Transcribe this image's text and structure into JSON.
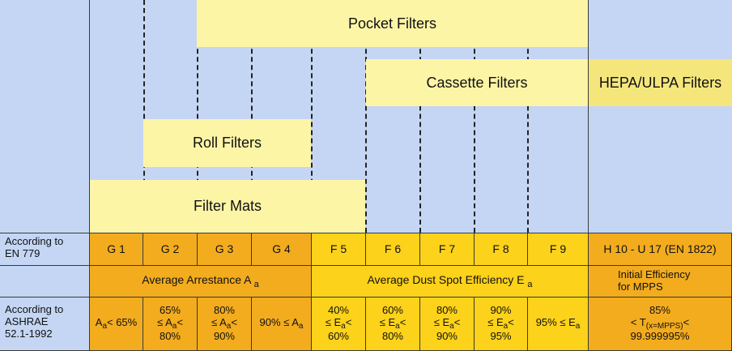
{
  "bands": {
    "pocket_filters": "Pocket Filters",
    "cassette_filters": "Cassette Filters",
    "hepa_ulpa_filters": "HEPA/ULPA Filters",
    "roll_filters": "Roll Filters",
    "filter_mats": "Filter Mats"
  },
  "standard_en779": {
    "label_line1": "According to",
    "label_line2": "EN 779"
  },
  "classes": [
    "G 1",
    "G 2",
    "G 3",
    "G 4",
    "F 5",
    "F 6",
    "F 7",
    "F 8",
    "F 9",
    "H 10 - U 17 (EN 1822)"
  ],
  "measures": {
    "arrestance_text": "Average Arrestance A",
    "arrestance_sub": "a",
    "dust_spot_text": "Average Dust Spot Efficiency E",
    "dust_spot_sub": "a",
    "initial_line1": "Initial Efficiency",
    "initial_line2": "for MPPS"
  },
  "standard_ashrae": {
    "label_line1": "According to",
    "label_line2": "ASHRAE",
    "label_line3": "52.1-1992"
  },
  "criteria": {
    "g1": {
      "sym": "A",
      "sub": "a",
      "rest": "< 65%"
    },
    "g2": {
      "line1": "65%",
      "line2_a": "≤ A",
      "line2_sub": "a",
      "line2_b": "<",
      "line3": "80%"
    },
    "g3": {
      "line1": "80%",
      "line2_a": "≤ A",
      "line2_sub": "a",
      "line2_b": "<",
      "line3": "90%"
    },
    "g4": {
      "pre": "90% ≤ A",
      "sub": "a"
    },
    "f5": {
      "line1": "40%",
      "line2_a": "≤ E",
      "line2_sub": "a",
      "line2_b": "<",
      "line3": "60%"
    },
    "f6": {
      "line1": "60%",
      "line2_a": "≤ E",
      "line2_sub": "a",
      "line2_b": "<",
      "line3": "80%"
    },
    "f7": {
      "line1": "80%",
      "line2_a": "≤ E",
      "line2_sub": "a",
      "line2_b": "<",
      "line3": "90%"
    },
    "f8": {
      "line1": "90%",
      "line2_a": "≤ E",
      "line2_sub": "a",
      "line2_b": "<",
      "line3": "95%"
    },
    "f9": {
      "pre": "95% ≤ E",
      "sub": "a"
    },
    "hepa": {
      "line1": "85%",
      "line2_a": "< T",
      "line2_sub": "(x=MPPS)",
      "line2_b": "<",
      "line3": "99.999995%"
    }
  },
  "colors": {
    "background": "#c4d6f4",
    "band_yellow": "#fdf5a6",
    "hepa_band": "#f5e67c",
    "class_orange": "#f3ac1e",
    "class_yellow": "#fcd21a"
  }
}
